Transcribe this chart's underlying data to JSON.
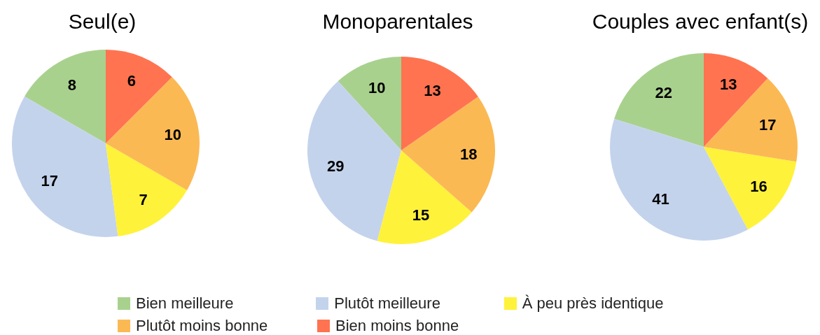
{
  "chart_data": [
    {
      "type": "pie",
      "title": "Seul(e)",
      "categories": [
        "Bien meilleure",
        "Plutôt meilleure",
        "À peu près identique",
        "Plutôt moins bonne",
        "Bien moins bonne"
      ],
      "values": [
        8,
        17,
        7,
        10,
        6
      ],
      "colors": [
        "#a9d18e",
        "#c4d3ec",
        "#fff23a",
        "#fbb954",
        "#ff7350"
      ],
      "data_labels": true,
      "legend": "bottom"
    },
    {
      "type": "pie",
      "title": "Monoparentales",
      "values": [
        10,
        29,
        15,
        18,
        13
      ],
      "colors": [
        "#a9d18e",
        "#c4d3ec",
        "#fff23a",
        "#fbb954",
        "#ff7350"
      ],
      "data_labels": true
    },
    {
      "type": "pie",
      "title": "Couples avec enfant(s)",
      "values": [
        22,
        41,
        16,
        17,
        13
      ],
      "colors": [
        "#a9d18e",
        "#c4d3ec",
        "#fff23a",
        "#fbb954",
        "#ff7350"
      ],
      "data_labels": true
    }
  ]
}
